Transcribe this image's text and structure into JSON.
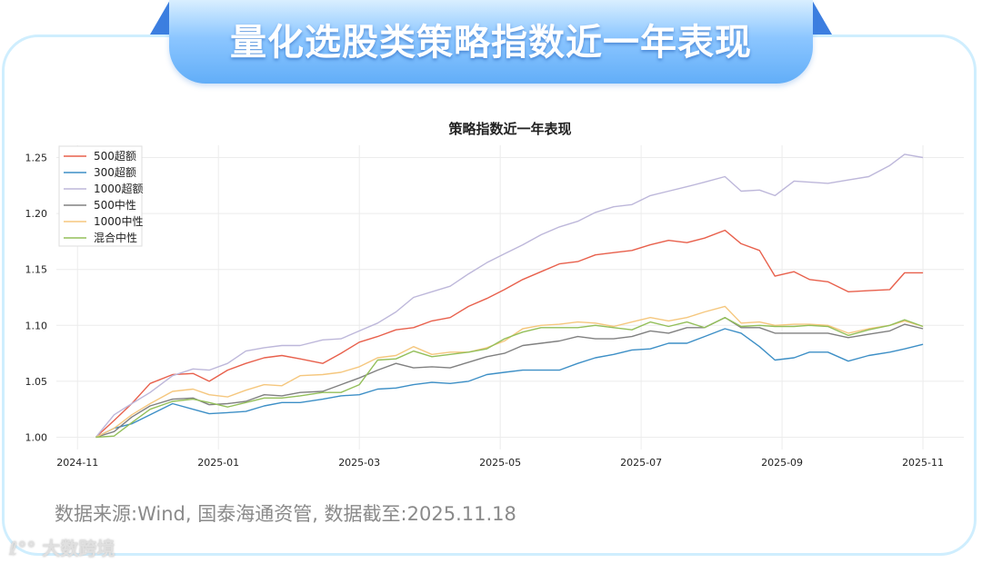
{
  "header": {
    "title": "量化选股类策略指数近一年表现"
  },
  "footer": {
    "source": "数据来源:Wind, 国泰海通资管, 数据截至:2025.11.18",
    "watermark": "大数跨境"
  },
  "chart_data": {
    "type": "line",
    "title": "策略指数近一年表现",
    "xlabel": "",
    "ylabel": "",
    "x_unit": "months since 2024-11-01",
    "x": [
      0.26,
      0.52,
      0.77,
      1.03,
      1.35,
      1.64,
      1.87,
      2.13,
      2.39,
      2.65,
      2.9,
      3.16,
      3.48,
      3.74,
      4.0,
      4.26,
      4.52,
      4.77,
      5.03,
      5.29,
      5.55,
      5.81,
      6.06,
      6.32,
      6.58,
      6.84,
      7.1,
      7.35,
      7.61,
      7.87,
      8.13,
      8.39,
      8.65,
      8.9,
      9.19,
      9.42,
      9.68,
      9.9,
      10.17,
      10.39,
      10.65,
      10.94,
      11.23,
      11.53,
      11.74,
      12.0
    ],
    "xticks": [
      {
        "v": 0,
        "label": "2024-11"
      },
      {
        "v": 2,
        "label": "2025-01"
      },
      {
        "v": 4,
        "label": "2025-03"
      },
      {
        "v": 6,
        "label": "2025-05"
      },
      {
        "v": 8,
        "label": "2025-07"
      },
      {
        "v": 10,
        "label": "2025-09"
      },
      {
        "v": 12,
        "label": "2025-11"
      }
    ],
    "yticks": [
      "1.00",
      "1.05",
      "1.10",
      "1.15",
      "1.20",
      "1.25"
    ],
    "xlim": [
      -0.3,
      12.58
    ],
    "ylim": [
      0.989,
      1.261
    ],
    "grid": true,
    "legend_position": "top-left",
    "series": [
      {
        "name": "500超额",
        "color": "#e8604c",
        "values": [
          1.0,
          1.015,
          1.03,
          1.048,
          1.056,
          1.057,
          1.05,
          1.06,
          1.066,
          1.071,
          1.073,
          1.07,
          1.066,
          1.075,
          1.085,
          1.09,
          1.096,
          1.098,
          1.104,
          1.107,
          1.117,
          1.124,
          1.132,
          1.141,
          1.148,
          1.155,
          1.157,
          1.163,
          1.165,
          1.167,
          1.172,
          1.176,
          1.174,
          1.178,
          1.185,
          1.173,
          1.167,
          1.144,
          1.148,
          1.141,
          1.139,
          1.13,
          1.131,
          1.132,
          1.147,
          1.147
        ]
      },
      {
        "name": "300超额",
        "color": "#3d8fc6",
        "values": [
          1.0,
          1.008,
          1.012,
          1.02,
          1.03,
          1.025,
          1.021,
          1.022,
          1.023,
          1.028,
          1.031,
          1.031,
          1.034,
          1.037,
          1.038,
          1.043,
          1.044,
          1.047,
          1.049,
          1.048,
          1.05,
          1.056,
          1.058,
          1.06,
          1.06,
          1.06,
          1.066,
          1.071,
          1.074,
          1.078,
          1.079,
          1.084,
          1.084,
          1.09,
          1.097,
          1.093,
          1.081,
          1.069,
          1.071,
          1.076,
          1.076,
          1.068,
          1.073,
          1.076,
          1.079,
          1.083
        ]
      },
      {
        "name": "1000超额",
        "color": "#bdb7da",
        "values": [
          1.0,
          1.02,
          1.03,
          1.04,
          1.055,
          1.061,
          1.06,
          1.066,
          1.077,
          1.08,
          1.082,
          1.082,
          1.087,
          1.088,
          1.095,
          1.102,
          1.112,
          1.125,
          1.13,
          1.135,
          1.146,
          1.156,
          1.164,
          1.172,
          1.181,
          1.188,
          1.193,
          1.201,
          1.206,
          1.208,
          1.216,
          1.22,
          1.224,
          1.228,
          1.233,
          1.22,
          1.221,
          1.216,
          1.229,
          1.228,
          1.227,
          1.23,
          1.233,
          1.243,
          1.253,
          1.25
        ]
      },
      {
        "name": "500中性",
        "color": "#808080",
        "values": [
          1.0,
          1.005,
          1.018,
          1.028,
          1.034,
          1.035,
          1.029,
          1.03,
          1.032,
          1.038,
          1.037,
          1.04,
          1.041,
          1.047,
          1.053,
          1.06,
          1.066,
          1.062,
          1.063,
          1.062,
          1.067,
          1.072,
          1.075,
          1.082,
          1.084,
          1.086,
          1.09,
          1.088,
          1.088,
          1.09,
          1.095,
          1.093,
          1.098,
          1.098,
          1.107,
          1.098,
          1.098,
          1.093,
          1.093,
          1.093,
          1.093,
          1.089,
          1.092,
          1.095,
          1.101,
          1.097
        ]
      },
      {
        "name": "1000中性",
        "color": "#f5c77e",
        "values": [
          1.0,
          1.008,
          1.02,
          1.03,
          1.041,
          1.043,
          1.038,
          1.036,
          1.042,
          1.047,
          1.046,
          1.055,
          1.056,
          1.058,
          1.063,
          1.071,
          1.073,
          1.081,
          1.074,
          1.076,
          1.076,
          1.08,
          1.086,
          1.097,
          1.1,
          1.101,
          1.103,
          1.102,
          1.099,
          1.103,
          1.107,
          1.104,
          1.107,
          1.112,
          1.117,
          1.102,
          1.103,
          1.1,
          1.101,
          1.101,
          1.1,
          1.093,
          1.097,
          1.1,
          1.104,
          1.099
        ]
      },
      {
        "name": "混合中性",
        "color": "#93bf5a",
        "values": [
          1.0,
          1.001,
          1.013,
          1.025,
          1.032,
          1.034,
          1.031,
          1.027,
          1.031,
          1.035,
          1.035,
          1.037,
          1.04,
          1.04,
          1.047,
          1.069,
          1.07,
          1.077,
          1.072,
          1.074,
          1.076,
          1.079,
          1.088,
          1.094,
          1.098,
          1.098,
          1.098,
          1.1,
          1.098,
          1.096,
          1.103,
          1.099,
          1.103,
          1.098,
          1.107,
          1.099,
          1.1,
          1.099,
          1.099,
          1.1,
          1.099,
          1.091,
          1.096,
          1.1,
          1.105,
          1.099
        ]
      }
    ]
  }
}
